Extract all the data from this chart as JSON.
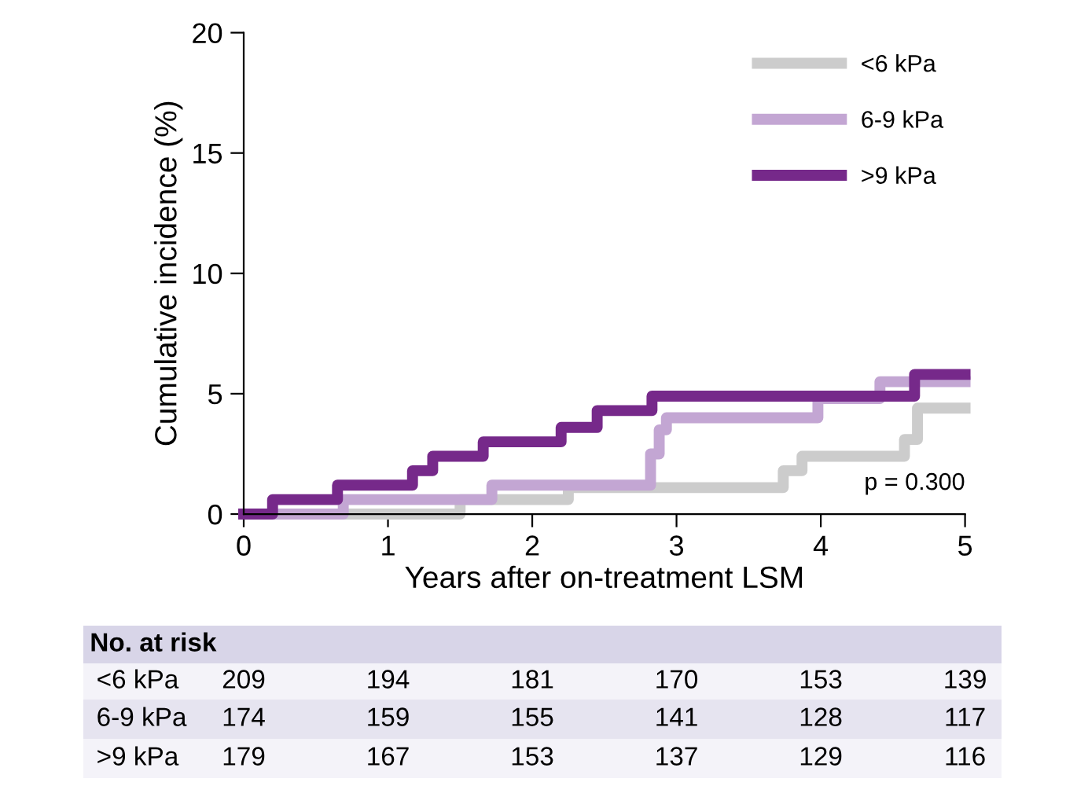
{
  "chart_data": {
    "type": "step",
    "xlabel": "Years after on-treatment LSM",
    "ylabel": "Cumulative incidence (%)",
    "xlim": [
      0,
      5
    ],
    "ylim": [
      0,
      20
    ],
    "xticks": [
      0,
      1,
      2,
      3,
      4,
      5
    ],
    "yticks": [
      0,
      5,
      10,
      15,
      20
    ],
    "grid": false,
    "legend": "top right",
    "line_style": "solid",
    "marker": "none",
    "series": [
      {
        "name": "<6 kPa",
        "color": "#cccccc",
        "x": [
          0,
          1.5,
          2.25,
          3.74,
          3.87,
          4.58,
          4.67,
          5
        ],
        "values": [
          0,
          0.6,
          1.1,
          1.8,
          2.4,
          3.1,
          4.4,
          4.4
        ]
      },
      {
        "name": "6-9 kPa",
        "color": "#c3a6d3",
        "x": [
          0,
          0.69,
          1.72,
          2.82,
          2.88,
          2.93,
          3.98,
          4.41,
          5
        ],
        "values": [
          0,
          0.6,
          1.2,
          2.5,
          3.5,
          4.0,
          4.8,
          5.5,
          5.5
        ]
      },
      {
        "name": ">9 kPa",
        "color": "#76298a",
        "x": [
          0,
          0.2,
          0.65,
          1.17,
          1.31,
          1.66,
          2.2,
          2.45,
          2.83,
          4.65,
          5
        ],
        "values": [
          0,
          0.6,
          1.2,
          1.8,
          2.4,
          3.0,
          3.6,
          4.3,
          4.9,
          5.8,
          5.8
        ]
      }
    ],
    "annotations": [
      "p = 0.300",
      "No. at risk",
      "<6 kPa",
      "209",
      "194",
      "181",
      "170",
      "153",
      "139",
      "6-9 kPa",
      "174",
      "159",
      "155",
      "141",
      "128",
      "117",
      ">9 kPa",
      "179",
      "167",
      "153",
      "137",
      "129",
      "116"
    ]
  }
}
